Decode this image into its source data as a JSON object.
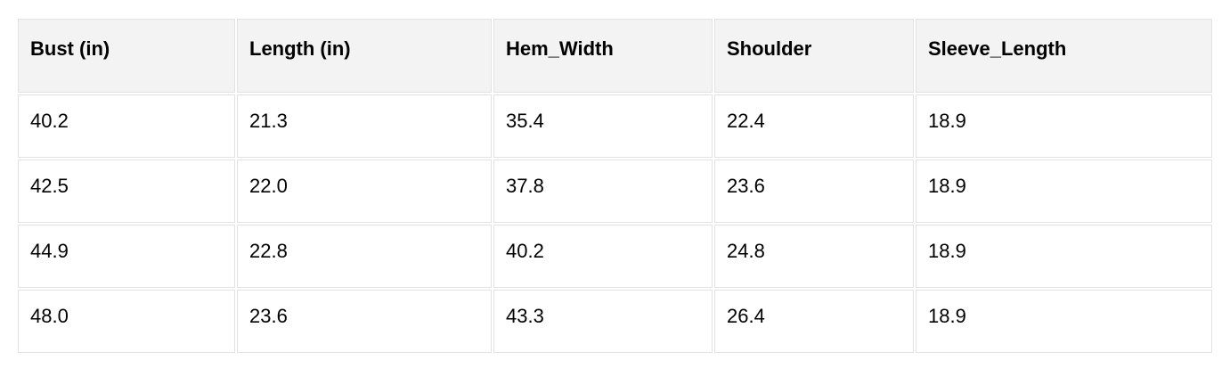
{
  "table": {
    "columns": [
      "Bust (in)",
      "Length (in)",
      "Hem_Width",
      "Shoulder",
      "Sleeve_Length"
    ],
    "rows": [
      [
        "40.2",
        "21.3",
        "35.4",
        "22.4",
        "18.9"
      ],
      [
        "42.5",
        "22.0",
        "37.8",
        "23.6",
        "18.9"
      ],
      [
        "44.9",
        "22.8",
        "40.2",
        "24.8",
        "18.9"
      ],
      [
        "48.0",
        "23.6",
        "43.3",
        "26.4",
        "18.9"
      ]
    ]
  },
  "colors": {
    "header_background": "#f3f3f3",
    "cell_border": "#e2e2e2",
    "text": "#000000",
    "page_background": "#ffffff"
  }
}
